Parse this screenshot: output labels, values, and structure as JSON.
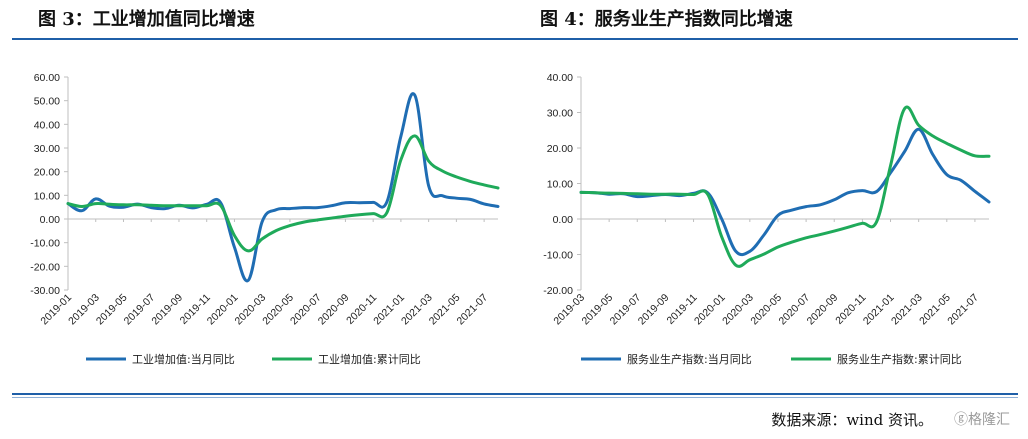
{
  "titles": {
    "left": "图 3：工业增加值同比增速",
    "right": "图 4：服务业生产指数同比增速"
  },
  "source": "数据来源：wind 资讯。",
  "watermark": "格隆汇",
  "colors": {
    "blue": "#1f6db3",
    "green": "#1faa5a",
    "axis": "#bfbfbf",
    "rule": "#1f5fa8"
  },
  "chart_data": [
    {
      "type": "line",
      "ylim": [
        -30,
        60
      ],
      "yticks": [
        "60.00",
        "50.00",
        "40.00",
        "30.00",
        "20.00",
        "10.00",
        "0.00",
        "-10.00",
        "-20.00",
        "-30.00"
      ],
      "yticks_values": [
        60,
        50,
        40,
        30,
        20,
        10,
        0,
        -10,
        -20,
        -30
      ],
      "x": [
        "2019-01",
        "2019-02",
        "2019-03",
        "2019-04",
        "2019-05",
        "2019-06",
        "2019-07",
        "2019-08",
        "2019-09",
        "2019-10",
        "2019-11",
        "2019-12",
        "2020-01",
        "2020-02",
        "2020-03",
        "2020-04",
        "2020-05",
        "2020-06",
        "2020-07",
        "2020-08",
        "2020-09",
        "2020-10",
        "2020-11",
        "2020-12",
        "2021-01",
        "2021-02",
        "2021-03",
        "2021-04",
        "2021-05",
        "2021-06",
        "2021-07",
        "2021-08"
      ],
      "xtick_labels": [
        "2019-01",
        "2019-03",
        "2019-05",
        "2019-07",
        "2019-09",
        "2019-11",
        "2020-01",
        "2020-03",
        "2020-05",
        "2020-07",
        "2020-09",
        "2020-11",
        "2021-01",
        "2021-03",
        "2021-05",
        "2021-07"
      ],
      "series": [
        {
          "name": "工业增加值:当月同比",
          "color": "#1f6db3",
          "values": [
            6.5,
            3.5,
            8.5,
            5.4,
            5.0,
            6.3,
            4.8,
            4.4,
            5.8,
            4.7,
            6.2,
            6.9,
            -12,
            -25.9,
            -1.1,
            3.9,
            4.4,
            4.8,
            4.8,
            5.6,
            6.9,
            6.9,
            7.0,
            7.3,
            35,
            52.3,
            14.1,
            9.8,
            8.8,
            8.3,
            6.4,
            5.3
          ]
        },
        {
          "name": "工业增加值:累计同比",
          "color": "#1faa5a",
          "values": [
            6.5,
            5.3,
            6.5,
            6.2,
            6.0,
            6.0,
            5.8,
            5.6,
            5.6,
            5.6,
            5.6,
            5.7,
            -7,
            -13.5,
            -8.4,
            -4.9,
            -2.8,
            -1.3,
            -0.4,
            0.4,
            1.2,
            1.8,
            2.3,
            2.8,
            25,
            35.1,
            24.5,
            20.3,
            17.8,
            15.9,
            14.4,
            13.1
          ]
        }
      ]
    },
    {
      "type": "line",
      "ylim": [
        -20,
        40
      ],
      "yticks": [
        "40.00",
        "30.00",
        "20.00",
        "10.00",
        "0.00",
        "-10.00",
        "-20.00"
      ],
      "yticks_values": [
        40,
        30,
        20,
        10,
        0,
        -10,
        -20
      ],
      "x": [
        "2019-03",
        "2019-04",
        "2019-05",
        "2019-06",
        "2019-07",
        "2019-08",
        "2019-09",
        "2019-10",
        "2019-11",
        "2019-12",
        "2020-01",
        "2020-02",
        "2020-03",
        "2020-04",
        "2020-05",
        "2020-06",
        "2020-07",
        "2020-08",
        "2020-09",
        "2020-10",
        "2020-11",
        "2020-12",
        "2021-01",
        "2021-02",
        "2021-03",
        "2021-04",
        "2021-05",
        "2021-06",
        "2021-07",
        "2021-08"
      ],
      "xtick_labels": [
        "2019-03",
        "2019-05",
        "2019-07",
        "2019-09",
        "2019-11",
        "2020-01",
        "2020-03",
        "2020-05",
        "2020-07",
        "2020-09",
        "2020-11",
        "2021-01",
        "2021-03",
        "2021-05",
        "2021-07"
      ],
      "series": [
        {
          "name": "服务业生产指数:当月同比",
          "color": "#1f6db3",
          "values": [
            7.5,
            7.4,
            7.0,
            7.1,
            6.3,
            6.6,
            6.9,
            6.6,
            7.2,
            7.4,
            0,
            -9.1,
            -9.1,
            -4.5,
            1.0,
            2.5,
            3.5,
            4.0,
            5.4,
            7.4,
            8.0,
            7.7,
            13,
            19,
            25.3,
            18.2,
            12.5,
            10.9,
            7.8,
            4.8
          ]
        },
        {
          "name": "服务业生产指数:累计同比",
          "color": "#1faa5a",
          "values": [
            7.5,
            7.4,
            7.3,
            7.2,
            7.1,
            7.0,
            7.0,
            7.0,
            6.9,
            7.0,
            -5,
            -13,
            -11.5,
            -9.9,
            -7.9,
            -6.5,
            -5.3,
            -4.4,
            -3.4,
            -2.3,
            -1.2,
            -0.9,
            15,
            31.1,
            26.4,
            23.4,
            21.3,
            19.4,
            17.8,
            17.7
          ]
        }
      ]
    }
  ]
}
